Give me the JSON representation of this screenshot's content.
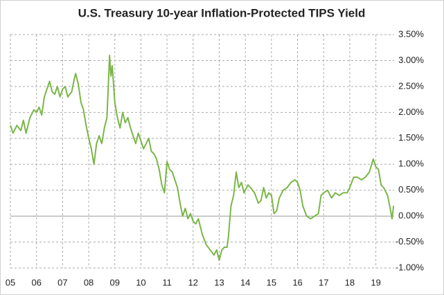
{
  "chart_data": {
    "type": "line",
    "title": "U.S. Treasury 10-year Inflation-Protected TIPS Yield",
    "x": [
      2005.0,
      2005.1,
      2005.25,
      2005.4,
      2005.5,
      2005.6,
      2005.75,
      2005.9,
      2006.0,
      2006.1,
      2006.2,
      2006.3,
      2006.4,
      2006.5,
      2006.6,
      2006.7,
      2006.8,
      2006.9,
      2007.0,
      2007.1,
      2007.2,
      2007.35,
      2007.45,
      2007.5,
      2007.6,
      2007.7,
      2007.8,
      2007.9,
      2008.0,
      2008.1,
      2008.2,
      2008.3,
      2008.4,
      2008.5,
      2008.6,
      2008.7,
      2008.8,
      2008.85,
      2008.9,
      2009.0,
      2009.1,
      2009.2,
      2009.3,
      2009.4,
      2009.5,
      2009.6,
      2009.7,
      2009.8,
      2009.9,
      2010.0,
      2010.1,
      2010.2,
      2010.3,
      2010.4,
      2010.5,
      2010.6,
      2010.7,
      2010.8,
      2010.9,
      2011.0,
      2011.1,
      2011.2,
      2011.3,
      2011.4,
      2011.5,
      2011.6,
      2011.7,
      2011.8,
      2011.9,
      2012.0,
      2012.1,
      2012.2,
      2012.35,
      2012.5,
      2012.65,
      2012.8,
      2012.9,
      2013.0,
      2013.1,
      2013.2,
      2013.3,
      2013.35,
      2013.45,
      2013.55,
      2013.65,
      2013.75,
      2013.85,
      2013.95,
      2014.1,
      2014.2,
      2014.35,
      2014.5,
      2014.6,
      2014.7,
      2014.8,
      2014.9,
      2015.0,
      2015.1,
      2015.2,
      2015.3,
      2015.45,
      2015.6,
      2015.75,
      2015.9,
      2016.0,
      2016.1,
      2016.2,
      2016.35,
      2016.5,
      2016.65,
      2016.8,
      2016.9,
      2017.0,
      2017.15,
      2017.3,
      2017.45,
      2017.6,
      2017.75,
      2017.9,
      2018.0,
      2018.15,
      2018.3,
      2018.45,
      2018.6,
      2018.75,
      2018.9,
      2019.0,
      2019.1,
      2019.2,
      2019.3,
      2019.45,
      2019.55,
      2019.62,
      2019.68
    ],
    "series": [
      {
        "color": "#7ab648",
        "values": [
          1.75,
          1.6,
          1.75,
          1.65,
          1.85,
          1.6,
          1.9,
          2.05,
          2.0,
          2.1,
          1.95,
          2.3,
          2.45,
          2.6,
          2.4,
          2.35,
          2.5,
          2.3,
          2.45,
          2.5,
          2.3,
          2.4,
          2.65,
          2.75,
          2.55,
          2.2,
          2.05,
          1.75,
          1.5,
          1.3,
          1.0,
          1.4,
          1.55,
          1.4,
          1.7,
          1.9,
          3.1,
          2.7,
          2.9,
          2.2,
          1.9,
          1.7,
          2.0,
          1.8,
          1.9,
          1.7,
          1.55,
          1.4,
          1.6,
          1.45,
          1.3,
          1.4,
          1.5,
          1.25,
          1.2,
          1.1,
          0.9,
          0.6,
          0.45,
          1.05,
          0.9,
          0.85,
          0.7,
          0.55,
          0.25,
          0.0,
          0.15,
          -0.05,
          0.05,
          -0.1,
          -0.15,
          -0.05,
          -0.35,
          -0.55,
          -0.65,
          -0.75,
          -0.65,
          -0.85,
          -0.65,
          -0.6,
          -0.6,
          -0.4,
          0.2,
          0.4,
          0.85,
          0.55,
          0.65,
          0.45,
          0.6,
          0.55,
          0.45,
          0.25,
          0.3,
          0.55,
          0.35,
          0.45,
          0.4,
          0.05,
          0.1,
          0.35,
          0.5,
          0.55,
          0.65,
          0.7,
          0.65,
          0.5,
          0.2,
          0.0,
          -0.05,
          0.0,
          0.05,
          0.4,
          0.45,
          0.5,
          0.35,
          0.45,
          0.4,
          0.45,
          0.45,
          0.55,
          0.75,
          0.75,
          0.7,
          0.75,
          0.85,
          1.1,
          0.95,
          0.9,
          0.6,
          0.55,
          0.4,
          0.15,
          -0.05,
          0.2
        ]
      }
    ],
    "xlim": [
      2005,
      2019.7
    ],
    "xticks": [
      {
        "value": 2005,
        "label": "05"
      },
      {
        "value": 2006,
        "label": "06"
      },
      {
        "value": 2007,
        "label": "07"
      },
      {
        "value": 2008,
        "label": "08"
      },
      {
        "value": 2009,
        "label": "09"
      },
      {
        "value": 2010,
        "label": "10"
      },
      {
        "value": 2011,
        "label": "11"
      },
      {
        "value": 2012,
        "label": "12"
      },
      {
        "value": 2013,
        "label": "13"
      },
      {
        "value": 2014,
        "label": "14"
      },
      {
        "value": 2015,
        "label": "15"
      },
      {
        "value": 2016,
        "label": "16"
      },
      {
        "value": 2017,
        "label": "17"
      },
      {
        "value": 2018,
        "label": "18"
      },
      {
        "value": 2019,
        "label": "19"
      }
    ],
    "ylim": [
      -1,
      3.5
    ],
    "yticks": [
      {
        "value": -1,
        "label": "-1.00%"
      },
      {
        "value": -0.5,
        "label": "-0.50%"
      },
      {
        "value": 0,
        "label": "0.00%"
      },
      {
        "value": 0.5,
        "label": "0.50%"
      },
      {
        "value": 1,
        "label": "1.00%"
      },
      {
        "value": 1.5,
        "label": "1.50%"
      },
      {
        "value": 2,
        "label": "2.00%"
      },
      {
        "value": 2.5,
        "label": "2.50%"
      },
      {
        "value": 3,
        "label": "3.00%"
      },
      {
        "value": 3.5,
        "label": "3.50%"
      }
    ],
    "grid": true
  }
}
